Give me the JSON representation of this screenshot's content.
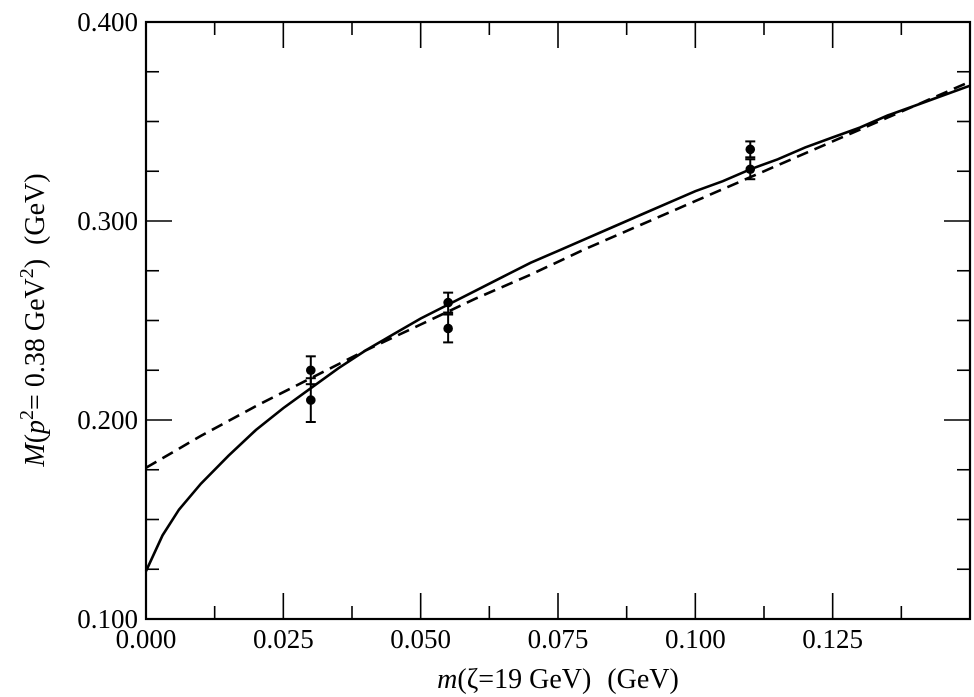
{
  "chart_data": {
    "type": "scatter",
    "title": "",
    "xlabel": {
      "prefix": "m",
      "body": "(ζ=19 GeV)",
      "units": "(GeV)"
    },
    "ylabel": {
      "prefix": "M",
      "open": "(",
      "p": "p",
      "sup1": "2",
      "eq": "= 0.38 GeV",
      "sup2": "2",
      "close": ")",
      "units": "(GeV)"
    },
    "xlim": [
      0.0,
      0.15
    ],
    "ylim": [
      0.1,
      0.4
    ],
    "xticks": {
      "major": [
        "0.000",
        "0.025",
        "0.050",
        "0.075",
        "0.100",
        "0.125"
      ],
      "major_values": [
        0.0,
        0.025,
        0.05,
        0.075,
        0.1,
        0.125
      ],
      "minor_step": 0.0125
    },
    "yticks": {
      "major": [
        "0.100",
        "0.200",
        "0.300",
        "0.400"
      ],
      "major_values": [
        0.1,
        0.2,
        0.3,
        0.4
      ],
      "minor_step": 0.025
    },
    "grid": false,
    "points": [
      {
        "x": 0.03,
        "y": 0.225,
        "err": 0.007
      },
      {
        "x": 0.03,
        "y": 0.21,
        "err": 0.011
      },
      {
        "x": 0.055,
        "y": 0.259,
        "err": 0.005
      },
      {
        "x": 0.055,
        "y": 0.246,
        "err": 0.007
      },
      {
        "x": 0.11,
        "y": 0.336,
        "err": 0.004
      },
      {
        "x": 0.11,
        "y": 0.326,
        "err": 0.005
      }
    ],
    "series": [
      {
        "style": "solid",
        "x": [
          0.0,
          0.003,
          0.006,
          0.01,
          0.015,
          0.02,
          0.025,
          0.03,
          0.035,
          0.04,
          0.045,
          0.05,
          0.055,
          0.06,
          0.065,
          0.07,
          0.075,
          0.08,
          0.085,
          0.09,
          0.095,
          0.1,
          0.105,
          0.11,
          0.115,
          0.12,
          0.125,
          0.13,
          0.135,
          0.14,
          0.145,
          0.15
        ],
        "y": [
          0.124,
          0.142,
          0.155,
          0.168,
          0.182,
          0.195,
          0.206,
          0.216,
          0.226,
          0.235,
          0.243,
          0.251,
          0.258,
          0.265,
          0.272,
          0.279,
          0.285,
          0.291,
          0.297,
          0.303,
          0.309,
          0.315,
          0.32,
          0.326,
          0.331,
          0.337,
          0.342,
          0.347,
          0.353,
          0.358,
          0.363,
          0.368
        ]
      },
      {
        "style": "dashed",
        "x": [
          0.0,
          0.01,
          0.02,
          0.03,
          0.04,
          0.05,
          0.06,
          0.07,
          0.08,
          0.09,
          0.1,
          0.11,
          0.12,
          0.13,
          0.14,
          0.15
        ],
        "y": [
          0.176,
          0.192,
          0.207,
          0.221,
          0.235,
          0.248,
          0.261,
          0.273,
          0.286,
          0.298,
          0.31,
          0.322,
          0.334,
          0.346,
          0.358,
          0.37
        ]
      }
    ]
  }
}
